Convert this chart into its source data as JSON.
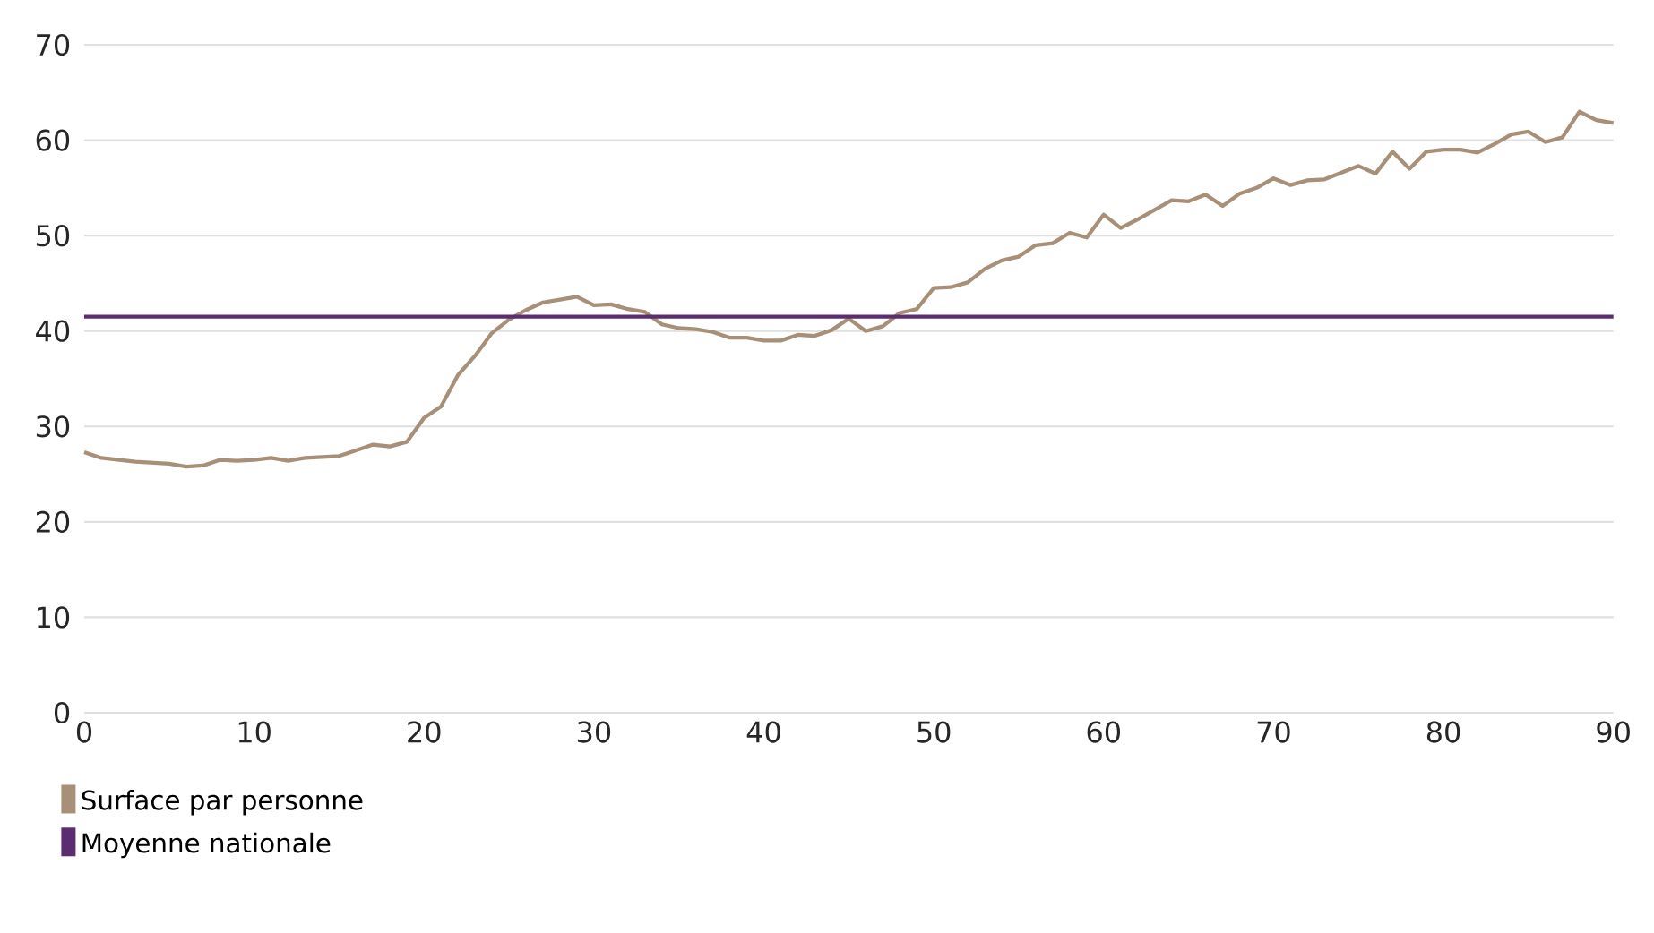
{
  "chart_data": {
    "type": "line",
    "xlim": [
      0,
      90
    ],
    "xticks": [
      0,
      10,
      20,
      30,
      40,
      50,
      60,
      70,
      80,
      90
    ],
    "ylim": [
      0,
      70
    ],
    "yticks": [
      0,
      10,
      20,
      30,
      40,
      50,
      60,
      70
    ],
    "grid": "y",
    "legend": "bottom left",
    "x": [
      0,
      1,
      3,
      5,
      6,
      7,
      8,
      9,
      10,
      11,
      12,
      13,
      14,
      15,
      16,
      17,
      18,
      19,
      20,
      21,
      22,
      23,
      24,
      25,
      26,
      27,
      28,
      29,
      30,
      31,
      32,
      33,
      34,
      35,
      36,
      37,
      38,
      39,
      40,
      41,
      42,
      43,
      44,
      45,
      46,
      47,
      48,
      49,
      50,
      51,
      52,
      53,
      54,
      55,
      56,
      57,
      58,
      59,
      60,
      61,
      62,
      63,
      64,
      65,
      66,
      67,
      68,
      69,
      70,
      71,
      72,
      73,
      74,
      75,
      76,
      77,
      78,
      79,
      80,
      81,
      82,
      83,
      84,
      85,
      86,
      87,
      88,
      89,
      90
    ],
    "series": [
      {
        "name": "Surface par personne",
        "color": "#a89078",
        "values": [
          27.3,
          26.7,
          26.3,
          26.1,
          25.8,
          25.9,
          26.5,
          26.4,
          26.5,
          26.7,
          26.4,
          26.7,
          26.8,
          26.9,
          27.5,
          28.1,
          27.9,
          28.4,
          30.9,
          32.1,
          35.4,
          37.4,
          39.8,
          41.2,
          42.2,
          43.0,
          43.3,
          43.6,
          42.7,
          42.8,
          42.3,
          42.0,
          40.7,
          40.3,
          40.2,
          39.9,
          39.3,
          39.3,
          39.0,
          39.0,
          39.6,
          39.5,
          40.1,
          41.3,
          40.0,
          40.5,
          41.9,
          42.3,
          44.5,
          44.6,
          45.1,
          46.5,
          47.4,
          47.8,
          49.0,
          49.2,
          50.3,
          49.8,
          52.2,
          50.8,
          51.7,
          52.7,
          53.7,
          53.6,
          54.3,
          53.1,
          54.4,
          55.0,
          56.0,
          55.3,
          55.8,
          55.9,
          56.6,
          57.3,
          56.5,
          58.8,
          57.0,
          58.8,
          59.0,
          59.0,
          58.7,
          59.6,
          60.6,
          60.9,
          59.8,
          60.3,
          63.0,
          62.1,
          61.8
        ]
      }
    ],
    "ref_lines": [
      {
        "axis": "y",
        "value": 41.5,
        "label": "Moyenne nationale",
        "color": "#5b2c6f"
      }
    ]
  }
}
